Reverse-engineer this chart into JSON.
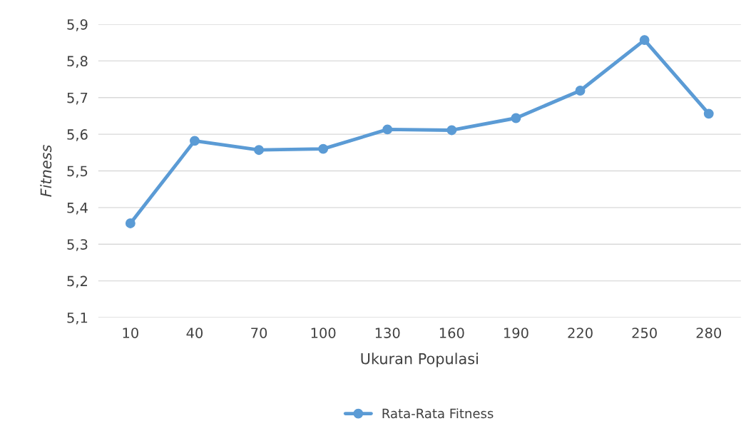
{
  "chart_data": {
    "type": "line",
    "xlabel": "Ukuran Populasi",
    "ylabel": "Fitness",
    "categories": [
      "10",
      "40",
      "70",
      "100",
      "130",
      "160",
      "190",
      "220",
      "250",
      "280"
    ],
    "series": [
      {
        "name": "Rata-Rata Fitness",
        "color": "#5b9bd5",
        "values": [
          5.357,
          5.582,
          5.557,
          5.56,
          5.613,
          5.611,
          5.644,
          5.719,
          5.857,
          5.656
        ]
      }
    ],
    "ylim": [
      5.1,
      5.9
    ],
    "yticks": [
      {
        "value": 5.1,
        "label": "5,1"
      },
      {
        "value": 5.2,
        "label": "5,2"
      },
      {
        "value": 5.3,
        "label": "5,3"
      },
      {
        "value": 5.4,
        "label": "5,4"
      },
      {
        "value": 5.5,
        "label": "5,5"
      },
      {
        "value": 5.6,
        "label": "5,6"
      },
      {
        "value": 5.7,
        "label": "5,7"
      },
      {
        "value": 5.8,
        "label": "5,8"
      },
      {
        "value": 5.9,
        "label": "5,9"
      }
    ],
    "grid": "y",
    "legend": "bottom",
    "marker": "circle",
    "line_style": "solid"
  }
}
